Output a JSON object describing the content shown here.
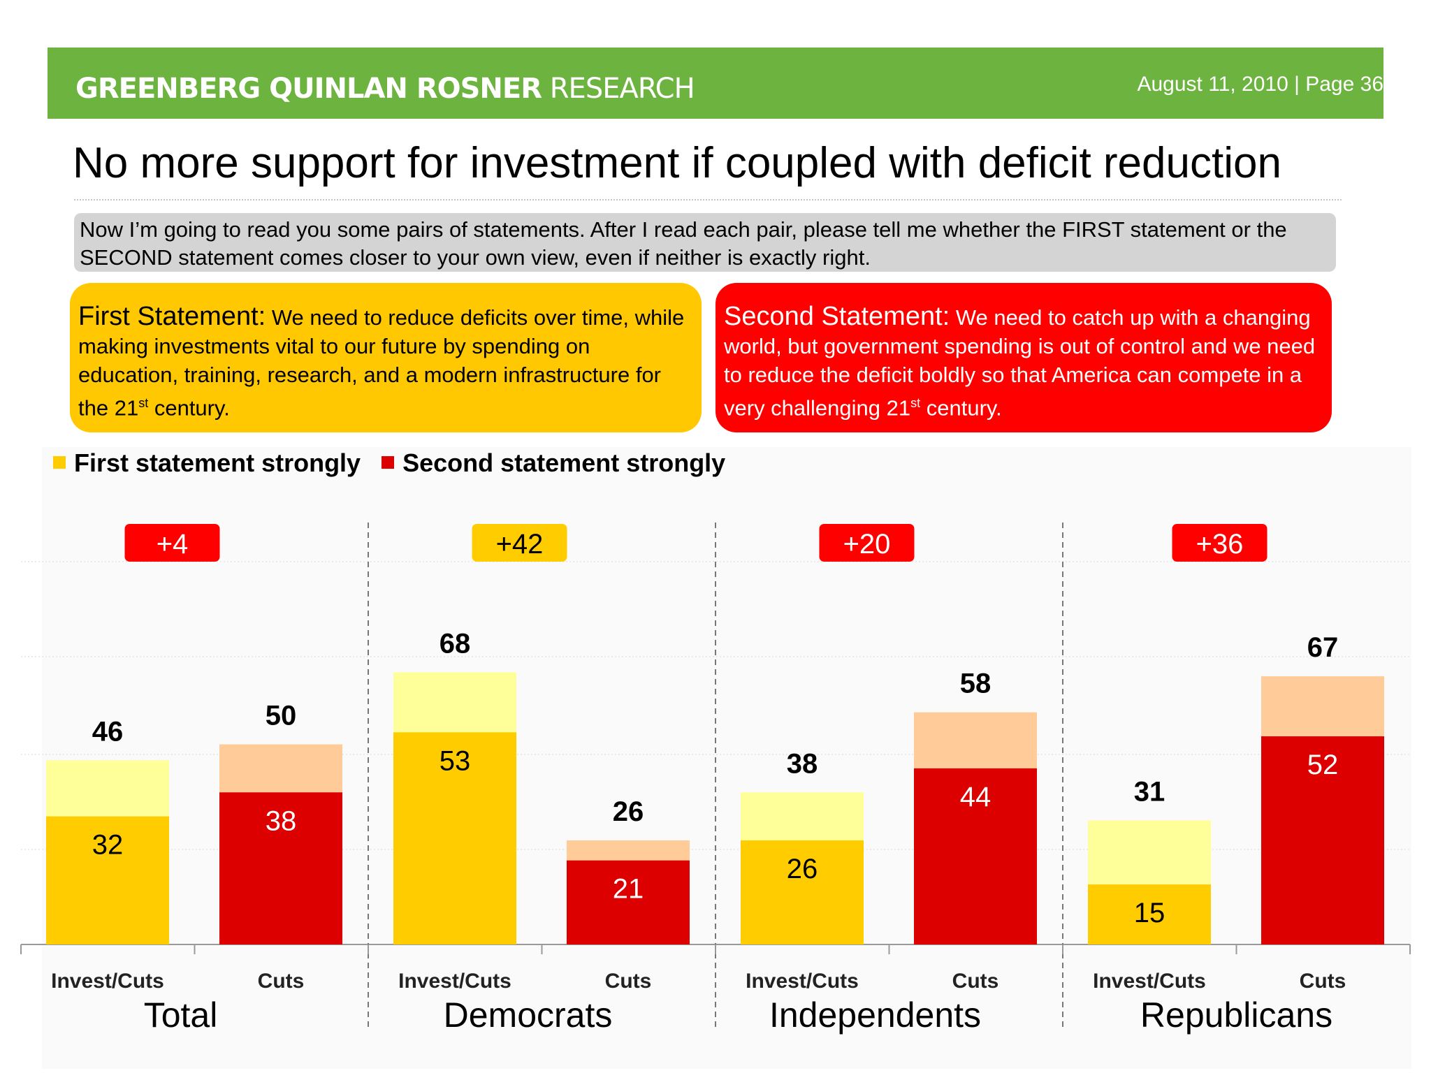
{
  "header": {
    "brand_bold": "GREENBERG QUINLAN ROSNER",
    "brand_light": "RESEARCH",
    "page_info": "August 11, 2010  |  Page 36"
  },
  "title": "No more support for investment if coupled with deficit reduction",
  "question": "Now I’m going to read you some pairs of statements. After I read each pair, please tell me whether the FIRST statement or the SECOND statement comes closer to your own view, even if neither is exactly right.",
  "statements": {
    "first": {
      "head": "First Statement:",
      "text": "We need to reduce deficits over time, while making investments vital to our future by spending on education, training, research, and a modern infrastructure for the 21",
      "sup": "st",
      "tail": " century."
    },
    "second": {
      "head": "Second Statement:",
      "text": "We need to catch up with a changing world, but government spending is out of control and we need to reduce the deficit boldly so that America can compete in a very challenging 21",
      "sup": "st",
      "tail": " century."
    }
  },
  "colors": {
    "header_green": "#6db33f",
    "first_strong": "#ffcc00",
    "first_total": "#ffff99",
    "second_strong": "#dd0000",
    "second_total": "#ffcc99",
    "badge_red": "#ff0000",
    "badge_yellow": "#ffcc00"
  },
  "chart_data": {
    "type": "bar",
    "stacked": true,
    "legend": [
      "First statement strongly",
      "Second statement strongly"
    ],
    "legend_position": "top-left",
    "ylim": [
      0,
      100
    ],
    "groups": [
      {
        "name": "Total",
        "margin": "+4",
        "winner": "second",
        "bars": [
          {
            "label": "Invest/Cuts",
            "kind": "first",
            "strongly": 32,
            "total": 46
          },
          {
            "label": "Cuts",
            "kind": "second",
            "strongly": 38,
            "total": 50
          }
        ]
      },
      {
        "name": "Democrats",
        "margin": "+42",
        "winner": "first",
        "bars": [
          {
            "label": "Invest/Cuts",
            "kind": "first",
            "strongly": 53,
            "total": 68
          },
          {
            "label": "Cuts",
            "kind": "second",
            "strongly": 21,
            "total": 26
          }
        ]
      },
      {
        "name": "Independents",
        "margin": "+20",
        "winner": "second",
        "bars": [
          {
            "label": "Invest/Cuts",
            "kind": "first",
            "strongly": 26,
            "total": 38
          },
          {
            "label": "Cuts",
            "kind": "second",
            "strongly": 44,
            "total": 58
          }
        ]
      },
      {
        "name": "Republicans",
        "margin": "+36",
        "winner": "second",
        "bars": [
          {
            "label": "Invest/Cuts",
            "kind": "first",
            "strongly": 15,
            "total": 31
          },
          {
            "label": "Cuts",
            "kind": "second",
            "strongly": 52,
            "total": 67
          }
        ]
      }
    ]
  }
}
